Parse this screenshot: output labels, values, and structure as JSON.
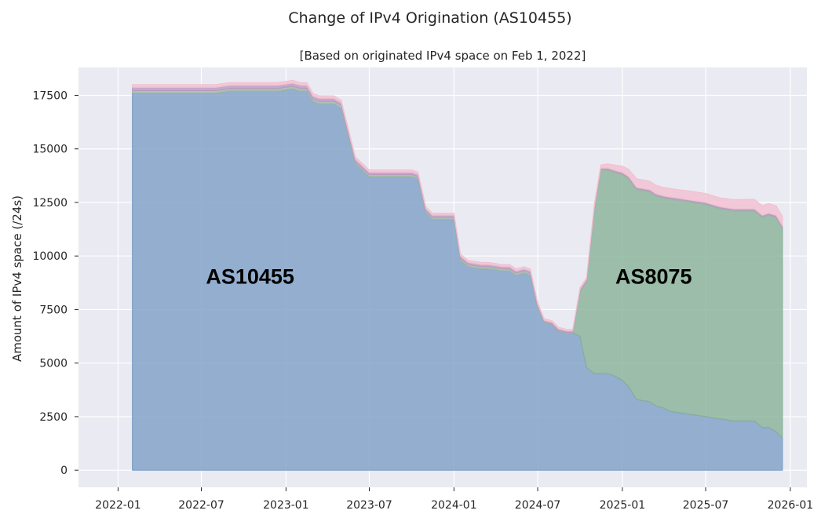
{
  "chart_data": {
    "type": "area",
    "stacked": true,
    "title": "Change of IPv4 Origination (AS10455)",
    "subtitle": "[Based on originated IPv4 space on Feb 1, 2022]",
    "xlabel": "",
    "ylabel": "Amount of IPv4 space (/24s)",
    "xlim": [
      "2021-10-07",
      "2026-02-06"
    ],
    "ylim": [
      -800,
      18800
    ],
    "x_ticks": [
      "2022-01",
      "2022-07",
      "2023-01",
      "2023-07",
      "2024-01",
      "2024-07",
      "2025-01",
      "2025-07",
      "2026-01"
    ],
    "y_ticks": [
      0,
      2500,
      5000,
      7500,
      10000,
      12500,
      15000,
      17500
    ],
    "grid": true,
    "background": "#eaeaf2",
    "annotations": [
      {
        "text": "AS10455",
        "x": "2022-10-15",
        "y": 8700
      },
      {
        "text": "AS8075",
        "x": "2025-03-10",
        "y": 8700
      }
    ],
    "x": [
      "2022-02-01",
      "2022-08-01",
      "2022-09-01",
      "2022-12-01",
      "2022-12-15",
      "2023-01-15",
      "2023-02-01",
      "2023-02-15",
      "2023-03-01",
      "2023-03-15",
      "2023-04-01",
      "2023-04-15",
      "2023-05-01",
      "2023-06-01",
      "2023-07-01",
      "2023-08-01",
      "2023-09-01",
      "2023-09-15",
      "2023-10-01",
      "2023-10-15",
      "2023-11-01",
      "2023-11-15",
      "2023-12-01",
      "2023-12-15",
      "2024-01-01",
      "2024-01-15",
      "2024-02-01",
      "2024-02-15",
      "2024-03-01",
      "2024-03-15",
      "2024-04-01",
      "2024-04-15",
      "2024-05-01",
      "2024-05-15",
      "2024-06-01",
      "2024-06-15",
      "2024-07-01",
      "2024-07-15",
      "2024-08-01",
      "2024-08-15",
      "2024-09-01",
      "2024-09-15",
      "2024-10-01",
      "2024-10-15",
      "2024-11-01",
      "2024-11-15",
      "2024-12-01",
      "2024-12-15",
      "2025-01-01",
      "2025-01-15",
      "2025-02-01",
      "2025-02-15",
      "2025-03-01",
      "2025-03-15",
      "2025-04-01",
      "2025-04-15",
      "2025-05-01",
      "2025-06-01",
      "2025-07-01",
      "2025-08-01",
      "2025-09-01",
      "2025-10-01",
      "2025-10-15",
      "2025-11-01",
      "2025-11-15",
      "2025-12-01",
      "2025-12-15"
    ],
    "series": [
      {
        "name": "",
        "color": "#7a9cc4",
        "values": [
          17600,
          17600,
          17700,
          17700,
          17700,
          17800,
          17700,
          17700,
          17200,
          17100,
          17100,
          17100,
          16900,
          14300,
          13700,
          13700,
          13700,
          13700,
          13700,
          13600,
          12000,
          11700,
          11700,
          11700,
          11700,
          9800,
          9500,
          9450,
          9400,
          9400,
          9350,
          9300,
          9300,
          9100,
          9200,
          9100,
          7600,
          6900,
          6800,
          6500,
          6400,
          6400,
          6250,
          4800,
          4500,
          4500,
          4500,
          4400,
          4200,
          3900,
          3300,
          3250,
          3200,
          3000,
          2900,
          2750,
          2700,
          2600,
          2500,
          2400,
          2300,
          2300,
          2300,
          2000,
          2000,
          1800,
          1500
        ]
      },
      {
        "name": "",
        "color": "#84b096",
        "values": [
          0,
          0,
          0,
          0,
          0,
          0,
          0,
          0,
          0,
          0,
          0,
          0,
          0,
          0,
          0,
          0,
          0,
          0,
          0,
          0,
          0,
          0,
          0,
          0,
          0,
          0,
          0,
          0,
          0,
          0,
          0,
          0,
          0,
          0,
          0,
          0,
          0,
          0,
          0,
          0,
          0,
          0,
          2100,
          4000,
          7700,
          9500,
          9500,
          9500,
          9600,
          9700,
          9800,
          9800,
          9800,
          9800,
          9800,
          9900,
          9900,
          9900,
          9900,
          9800,
          9800,
          9800,
          9800,
          9800,
          9900,
          10000,
          9800
        ]
      },
      {
        "name": "",
        "color": "#9fb5a6",
        "values": [
          120,
          120,
          120,
          120,
          120,
          120,
          120,
          120,
          120,
          120,
          120,
          120,
          120,
          100,
          100,
          100,
          100,
          100,
          100,
          100,
          100,
          100,
          100,
          100,
          100,
          100,
          100,
          100,
          100,
          100,
          100,
          100,
          100,
          100,
          100,
          100,
          60,
          40,
          40,
          40,
          40,
          40,
          40,
          40,
          40,
          40,
          40,
          40,
          40,
          40,
          40,
          40,
          40,
          40,
          40,
          40,
          40,
          40,
          40,
          40,
          40,
          40,
          40,
          40,
          40,
          40,
          40
        ]
      },
      {
        "name": "",
        "color": "#b99ac0",
        "values": [
          150,
          150,
          150,
          150,
          150,
          150,
          150,
          150,
          140,
          140,
          140,
          140,
          140,
          110,
          110,
          110,
          110,
          110,
          110,
          110,
          100,
          100,
          100,
          100,
          100,
          100,
          100,
          100,
          100,
          100,
          100,
          100,
          100,
          100,
          100,
          100,
          80,
          60,
          60,
          60,
          60,
          60,
          60,
          60,
          60,
          60,
          60,
          60,
          60,
          60,
          60,
          60,
          60,
          60,
          60,
          60,
          60,
          60,
          60,
          60,
          60,
          60,
          60,
          60,
          60,
          60,
          60
        ]
      },
      {
        "name": "",
        "color": "#f2bfcf",
        "values": [
          130,
          130,
          130,
          130,
          130,
          130,
          130,
          130,
          120,
          120,
          120,
          120,
          120,
          110,
          110,
          110,
          110,
          110,
          110,
          110,
          100,
          100,
          100,
          100,
          100,
          100,
          100,
          100,
          100,
          100,
          100,
          100,
          100,
          100,
          100,
          100,
          90,
          80,
          80,
          80,
          80,
          80,
          80,
          80,
          150,
          150,
          200,
          250,
          300,
          350,
          400,
          400,
          400,
          400,
          400,
          400,
          400,
          420,
          420,
          420,
          430,
          440,
          440,
          450,
          450,
          450,
          450
        ]
      }
    ]
  }
}
